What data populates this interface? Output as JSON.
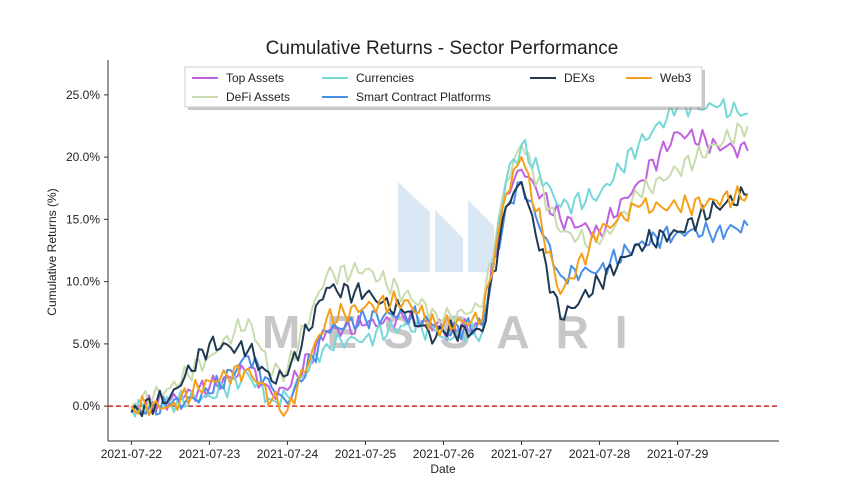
{
  "chart_data": {
    "type": "line",
    "title": "Cumulative Returns - Sector Performance",
    "xlabel": "Date",
    "ylabel": "Cumulative Returns (%)",
    "x_ticks": [
      "2021-07-22",
      "2021-07-23",
      "2021-07-24",
      "2021-07-25",
      "2021-07-26",
      "2021-07-27",
      "2021-07-28",
      "2021-07-29"
    ],
    "x_range_days": [
      -0.3,
      8.3
    ],
    "y_range": [
      -2.8,
      27.8
    ],
    "y_ticks": [
      0,
      5,
      10,
      15,
      20,
      25
    ],
    "y_tick_labels": [
      "0.0%",
      "5.0%",
      "10.0%",
      "15.0%",
      "20.0%",
      "25.0%"
    ],
    "grid": false,
    "legend_position": "top-center",
    "reference_line": {
      "y": 0,
      "color": "#d62728",
      "style": "dashed"
    },
    "watermark": "MESSARI",
    "series": [
      {
        "name": "Top Assets",
        "color": "#c061e0",
        "x": [
          0,
          0.5,
          1,
          1.5,
          1.8,
          2,
          2.5,
          3,
          3.5,
          3.9,
          4,
          4.5,
          4.8,
          5,
          5.5,
          6,
          6.5,
          7,
          7.5,
          7.9
        ],
        "y": [
          -0.3,
          0.5,
          1.5,
          3.0,
          1.0,
          1.3,
          6.0,
          6.5,
          7.0,
          6.5,
          6.0,
          6.5,
          17.0,
          19.0,
          15.0,
          14.0,
          18.0,
          22.0,
          21.0,
          20.5
        ]
      },
      {
        "name": "DeFi Assets",
        "color": "#c8dcb0",
        "x": [
          0,
          0.5,
          1,
          1.5,
          1.8,
          2,
          2.5,
          3,
          3.5,
          3.9,
          4,
          4.5,
          4.8,
          5,
          5.5,
          6,
          6.5,
          7,
          7.5,
          7.9
        ],
        "y": [
          0.0,
          1.5,
          4.0,
          7.0,
          2.5,
          3.0,
          10.5,
          11.0,
          9.0,
          7.5,
          7.0,
          8.0,
          18.0,
          21.0,
          14.0,
          13.0,
          17.0,
          19.0,
          21.0,
          22.5
        ]
      },
      {
        "name": "Currencies",
        "color": "#76d7d9",
        "x": [
          0,
          0.5,
          1,
          1.5,
          1.8,
          2,
          2.5,
          3,
          3.5,
          3.9,
          4,
          4.5,
          4.8,
          5,
          5.5,
          6,
          6.5,
          7,
          7.5,
          7.9
        ],
        "y": [
          -0.2,
          0.3,
          0.8,
          2.5,
          0.5,
          0.8,
          5.0,
          5.5,
          6.5,
          6.0,
          5.5,
          6.0,
          18.0,
          21.0,
          16.0,
          17.0,
          21.0,
          24.0,
          24.0,
          23.5
        ]
      },
      {
        "name": "Smart Contract Platforms",
        "color": "#4a8fe7",
        "x": [
          0,
          0.5,
          1,
          1.5,
          1.8,
          2,
          2.5,
          3,
          3.5,
          3.9,
          4,
          4.5,
          4.8,
          5,
          5.5,
          6,
          6.5,
          7,
          7.5,
          7.9
        ],
        "y": [
          -0.5,
          0.0,
          1.0,
          4.0,
          1.5,
          0.2,
          6.0,
          7.0,
          7.5,
          6.5,
          6.0,
          6.5,
          16.0,
          18.0,
          10.5,
          11.0,
          13.0,
          14.0,
          14.0,
          14.5
        ]
      },
      {
        "name": "DEXs",
        "color": "#1f3a52",
        "x": [
          0,
          0.5,
          1,
          1.5,
          1.8,
          2,
          2.5,
          3,
          3.5,
          3.9,
          4,
          4.5,
          4.8,
          5,
          5.5,
          6,
          6.5,
          7,
          7.5,
          7.9
        ],
        "y": [
          -0.5,
          0.8,
          5.0,
          4.5,
          2.0,
          2.5,
          9.5,
          9.0,
          7.5,
          5.5,
          6.0,
          6.0,
          16.0,
          18.0,
          7.0,
          10.0,
          13.0,
          14.0,
          16.0,
          17.0
        ]
      },
      {
        "name": "Web3",
        "color": "#f5a01a",
        "x": [
          0,
          0.5,
          1,
          1.5,
          1.8,
          2,
          2.5,
          3,
          3.5,
          3.9,
          4,
          4.5,
          4.8,
          5,
          5.5,
          6,
          6.5,
          7,
          7.5,
          7.9
        ],
        "y": [
          0.0,
          0.0,
          2.0,
          3.0,
          0.5,
          -0.3,
          7.0,
          8.0,
          8.5,
          6.5,
          6.5,
          7.0,
          17.0,
          20.0,
          9.0,
          14.0,
          16.0,
          16.0,
          16.5,
          17.0
        ]
      }
    ]
  }
}
